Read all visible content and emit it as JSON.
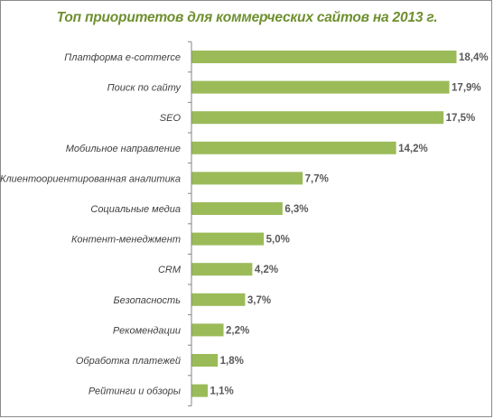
{
  "chart_data": {
    "type": "bar",
    "orientation": "horizontal",
    "title": "Топ приоритетов для коммерческих сайтов на 2013 г.",
    "categories": [
      "Платформа e-commerce",
      "Поиск по сайту",
      "SEO",
      "Мобильное направление",
      "Клиентоориентированная аналитика",
      "Социальные медиа",
      "Контент-менеджмент",
      "CRM",
      "Безопасность",
      "Рекомендации",
      "Обработка платежей",
      "Рейтинги и обзоры"
    ],
    "values": [
      18.4,
      17.9,
      17.5,
      14.2,
      7.7,
      6.3,
      5.0,
      4.2,
      3.7,
      2.2,
      1.8,
      1.1
    ],
    "value_labels": [
      "18,4%",
      "17,9%",
      "17,5%",
      "14,2%",
      "7,7%",
      "6,3%",
      "5,0%",
      "4,2%",
      "3,7%",
      "2,2%",
      "1,8%",
      "1,1%"
    ],
    "unit": "%",
    "xlim": [
      0,
      18.4
    ],
    "grid": false,
    "legend": "none",
    "bar_color": "#9bbb59",
    "title_color": "#6f8f2f"
  }
}
